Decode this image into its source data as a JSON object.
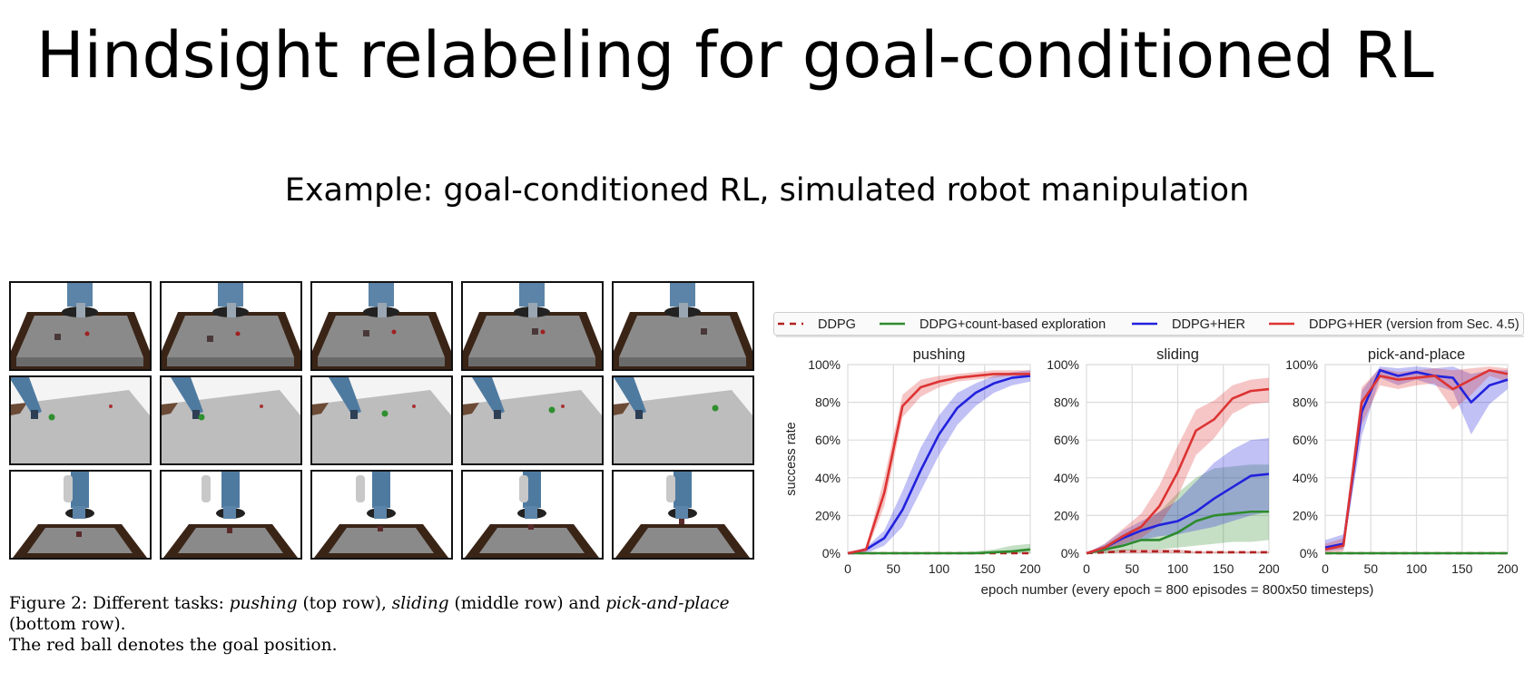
{
  "slide": {
    "title": "Hindsight relabeling for goal-conditioned RL",
    "subtitle": "Example: goal-conditioned RL, simulated robot manipulation"
  },
  "figure_caption": {
    "prefix": "Figure 2: Different tasks: ",
    "t1": "pushing",
    "m1": " (top row), ",
    "t2": "sliding",
    "m2": " (middle row) and ",
    "t3": "pick-and-place",
    "m3": " (bottom row).",
    "line2": "The red ball denotes the goal position."
  },
  "task_images": {
    "rows": [
      "pushing",
      "sliding",
      "pick-and-place"
    ],
    "columns": 5
  },
  "chart_data": [
    {
      "type": "line",
      "title": "pushing",
      "xlabel": "epoch number (every epoch = 800 episodes = 800x50 timesteps)",
      "ylabel": "success rate",
      "xlim": [
        0,
        200
      ],
      "ylim": [
        0,
        100
      ],
      "xticks": [
        "0",
        "50",
        "100",
        "150",
        "200"
      ],
      "yticks": [
        "0%",
        "20%",
        "40%",
        "60%",
        "80%",
        "100%"
      ],
      "grid": true,
      "x": [
        0,
        20,
        40,
        60,
        80,
        100,
        120,
        140,
        160,
        180,
        200
      ],
      "series": [
        {
          "name": "DDPG",
          "color": "#b22222",
          "dash": true,
          "values": [
            0,
            0,
            0,
            0,
            0,
            0,
            0,
            0,
            0,
            0,
            0
          ],
          "band": [
            [
              0,
              0
            ],
            [
              0,
              0
            ],
            [
              0,
              0
            ],
            [
              0,
              0
            ],
            [
              0,
              0
            ],
            [
              0,
              0
            ],
            [
              0,
              0
            ],
            [
              0,
              0
            ],
            [
              0,
              0
            ],
            [
              0,
              0
            ],
            [
              0,
              0
            ]
          ]
        },
        {
          "name": "DDPG+count-based exploration",
          "color": "#2e8b2e",
          "dash": false,
          "values": [
            0,
            0,
            0,
            0,
            0,
            0,
            0,
            0,
            0.5,
            1,
            2
          ],
          "band": [
            [
              0,
              0
            ],
            [
              0,
              0
            ],
            [
              0,
              0
            ],
            [
              0,
              0
            ],
            [
              0,
              0
            ],
            [
              0,
              0
            ],
            [
              0,
              0.5
            ],
            [
              0,
              1
            ],
            [
              0,
              2
            ],
            [
              0,
              4
            ],
            [
              0,
              5
            ]
          ]
        },
        {
          "name": "DDPG+HER",
          "color": "#2222dd",
          "dash": false,
          "values": [
            0,
            2,
            8,
            23,
            44,
            63,
            77,
            85,
            90,
            93,
            94
          ],
          "band": [
            [
              0,
              0
            ],
            [
              0,
              3
            ],
            [
              4,
              12
            ],
            [
              14,
              33
            ],
            [
              33,
              56
            ],
            [
              52,
              73
            ],
            [
              68,
              85
            ],
            [
              78,
              90
            ],
            [
              85,
              94
            ],
            [
              89,
              96
            ],
            [
              91,
              97
            ]
          ]
        },
        {
          "name": "DDPG+HER (version from Sec. 4.5)",
          "color": "#dd3333",
          "dash": false,
          "values": [
            0,
            2,
            32,
            78,
            88,
            91,
            93,
            94,
            95,
            95,
            95
          ],
          "band": [
            [
              0,
              0
            ],
            [
              0,
              3
            ],
            [
              25,
              40
            ],
            [
              72,
              84
            ],
            [
              83,
              92
            ],
            [
              88,
              94
            ],
            [
              91,
              95
            ],
            [
              92,
              96
            ],
            [
              93,
              97
            ],
            [
              94,
              97
            ],
            [
              94,
              97
            ]
          ]
        }
      ]
    },
    {
      "type": "line",
      "title": "sliding",
      "xlim": [
        0,
        200
      ],
      "ylim": [
        0,
        100
      ],
      "xticks": [
        "0",
        "50",
        "100",
        "150",
        "200"
      ],
      "yticks": [
        "0%",
        "20%",
        "40%",
        "60%",
        "80%",
        "100%"
      ],
      "grid": true,
      "x": [
        0,
        20,
        40,
        60,
        80,
        100,
        120,
        140,
        160,
        180,
        200
      ],
      "series": [
        {
          "name": "DDPG",
          "color": "#b22222",
          "dash": true,
          "values": [
            0,
            0.5,
            1,
            1,
            1,
            1,
            0.5,
            0.5,
            0.5,
            0.5,
            0.5
          ],
          "band": [
            [
              0,
              0
            ],
            [
              0,
              1
            ],
            [
              0,
              2
            ],
            [
              0,
              2
            ],
            [
              0,
              2
            ],
            [
              0,
              2
            ],
            [
              0,
              1
            ],
            [
              0,
              1
            ],
            [
              0,
              1
            ],
            [
              0,
              1
            ],
            [
              0,
              1
            ]
          ]
        },
        {
          "name": "DDPG+count-based exploration",
          "color": "#2e8b2e",
          "dash": false,
          "values": [
            0,
            2,
            4,
            7,
            7,
            11,
            17,
            20,
            21,
            22,
            22
          ],
          "band": [
            [
              0,
              0
            ],
            [
              0,
              4
            ],
            [
              1,
              10
            ],
            [
              2,
              15
            ],
            [
              2,
              22
            ],
            [
              3,
              32
            ],
            [
              4,
              40
            ],
            [
              5,
              45
            ],
            [
              6,
              46
            ],
            [
              6,
              47
            ],
            [
              7,
              47
            ]
          ]
        },
        {
          "name": "DDPG+HER",
          "color": "#2222dd",
          "dash": false,
          "values": [
            0,
            3,
            8,
            12,
            15,
            17,
            22,
            29,
            35,
            41,
            42
          ],
          "band": [
            [
              0,
              0
            ],
            [
              1,
              5
            ],
            [
              4,
              12
            ],
            [
              7,
              17
            ],
            [
              9,
              22
            ],
            [
              10,
              28
            ],
            [
              12,
              38
            ],
            [
              14,
              48
            ],
            [
              17,
              55
            ],
            [
              20,
              60
            ],
            [
              22,
              61
            ]
          ]
        },
        {
          "name": "DDPG+HER (version from Sec. 4.5)",
          "color": "#dd3333",
          "dash": false,
          "values": [
            0,
            3,
            9,
            14,
            25,
            43,
            65,
            71,
            82,
            86,
            87
          ],
          "band": [
            [
              0,
              0
            ],
            [
              1,
              5
            ],
            [
              5,
              13
            ],
            [
              8,
              21
            ],
            [
              15,
              36
            ],
            [
              30,
              57
            ],
            [
              52,
              76
            ],
            [
              61,
              81
            ],
            [
              74,
              89
            ],
            [
              79,
              92
            ],
            [
              80,
              93
            ]
          ]
        }
      ]
    },
    {
      "type": "line",
      "title": "pick-and-place",
      "xlim": [
        0,
        200
      ],
      "ylim": [
        0,
        100
      ],
      "xticks": [
        "0",
        "50",
        "100",
        "150",
        "200"
      ],
      "yticks": [
        "0%",
        "20%",
        "40%",
        "60%",
        "80%",
        "100%"
      ],
      "grid": true,
      "x": [
        0,
        20,
        40,
        60,
        80,
        100,
        120,
        140,
        160,
        180,
        200
      ],
      "series": [
        {
          "name": "DDPG",
          "color": "#b22222",
          "dash": true,
          "values": [
            0,
            0,
            0,
            0,
            0,
            0,
            0,
            0,
            0,
            0,
            0
          ],
          "band": [
            [
              0,
              0
            ],
            [
              0,
              0
            ],
            [
              0,
              0
            ],
            [
              0,
              0
            ],
            [
              0,
              0
            ],
            [
              0,
              0
            ],
            [
              0,
              0
            ],
            [
              0,
              0
            ],
            [
              0,
              0
            ],
            [
              0,
              0
            ],
            [
              0,
              0
            ]
          ]
        },
        {
          "name": "DDPG+count-based exploration",
          "color": "#2e8b2e",
          "dash": false,
          "values": [
            0,
            0,
            0,
            0,
            0,
            0,
            0,
            0,
            0,
            0,
            0
          ],
          "band": [
            [
              0,
              0
            ],
            [
              0,
              0
            ],
            [
              0,
              0
            ],
            [
              0,
              0
            ],
            [
              0,
              0
            ],
            [
              0,
              0
            ],
            [
              0,
              0
            ],
            [
              0,
              0
            ],
            [
              0,
              0
            ],
            [
              0,
              0
            ],
            [
              0,
              0
            ]
          ]
        },
        {
          "name": "DDPG+HER",
          "color": "#2222dd",
          "dash": false,
          "values": [
            3,
            5,
            75,
            97,
            94,
            96,
            94,
            93,
            80,
            89,
            92
          ],
          "band": [
            [
              1,
              7
            ],
            [
              2,
              10
            ],
            [
              62,
              86
            ],
            [
              93,
              99
            ],
            [
              89,
              98
            ],
            [
              92,
              99
            ],
            [
              89,
              98
            ],
            [
              86,
              99
            ],
            [
              63,
              95
            ],
            [
              79,
              97
            ],
            [
              87,
              97
            ]
          ]
        },
        {
          "name": "DDPG+HER (version from Sec. 4.5)",
          "color": "#dd3333",
          "dash": false,
          "values": [
            2,
            4,
            80,
            94,
            92,
            93,
            94,
            87,
            92,
            97,
            95
          ],
          "band": [
            [
              0,
              5
            ],
            [
              1,
              8
            ],
            [
              68,
              88
            ],
            [
              89,
              98
            ],
            [
              87,
              96
            ],
            [
              89,
              97
            ],
            [
              90,
              98
            ],
            [
              76,
              97
            ],
            [
              84,
              98
            ],
            [
              94,
              99
            ],
            [
              91,
              98
            ]
          ]
        }
      ]
    }
  ]
}
